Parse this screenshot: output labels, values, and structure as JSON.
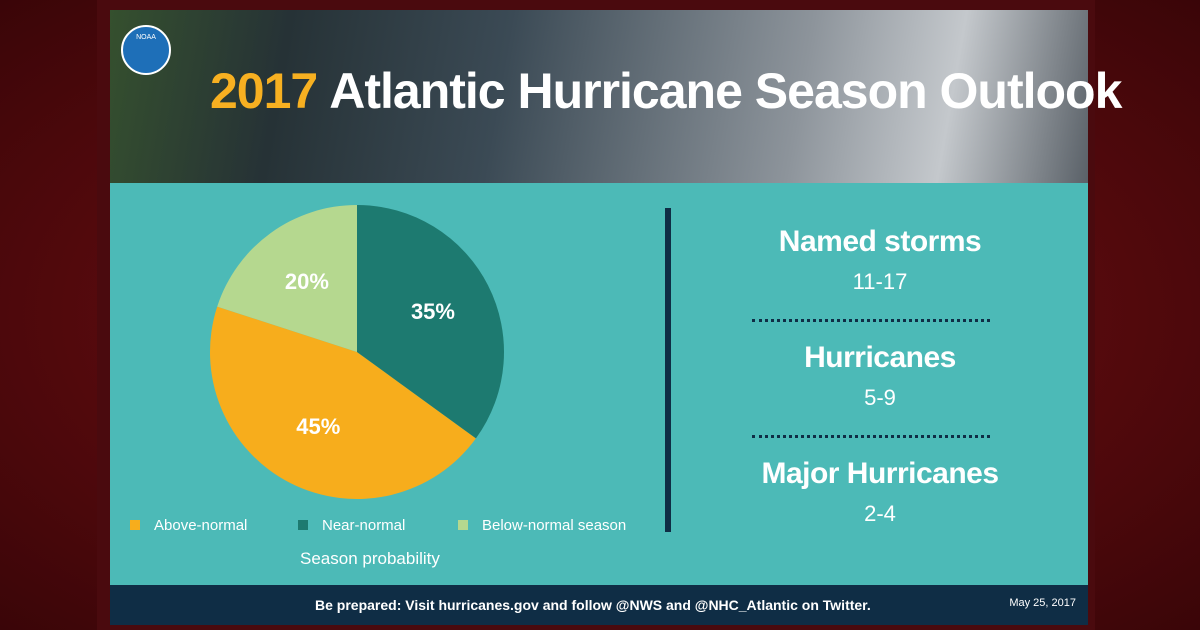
{
  "header": {
    "logo": "NOAA",
    "year": "2017",
    "title": "Atlantic Hurricane Season Outlook"
  },
  "chart_data": {
    "type": "pie",
    "categories": [
      "Above-normal",
      "Near-normal",
      "Below-normal season"
    ],
    "values": [
      45,
      35,
      20
    ],
    "value_labels": [
      "45%",
      "35%",
      "20%"
    ],
    "colors": [
      "#f7ad1c",
      "#1d7a70",
      "#b5d88f"
    ],
    "caption": "Season probability"
  },
  "stats": [
    {
      "label": "Named storms",
      "value": "11-17"
    },
    {
      "label": "Hurricanes",
      "value": "5-9"
    },
    {
      "label": "Major Hurricanes",
      "value": "2-4"
    }
  ],
  "footer": {
    "text": "Be prepared: Visit hurricanes.gov and follow @NWS and @NHC_Atlantic on Twitter.",
    "date": "May 25, 2017"
  }
}
